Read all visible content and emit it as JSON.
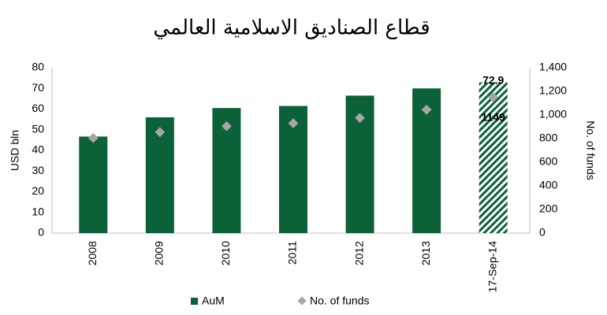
{
  "chart_data": {
    "type": "bar_scatter",
    "title": "قطاع الصناديق الاسلامية العالمي",
    "y_label": "USD bln",
    "y2_label": "No. of funds",
    "categories": [
      "2008",
      "2009",
      "2010",
      "2011",
      "2012",
      "2013",
      "17-Sep-14"
    ],
    "series": [
      {
        "name": "AuM",
        "color": "#0b6138",
        "values": [
          46.7,
          56,
          60.5,
          61.5,
          66.5,
          70,
          72.9
        ],
        "value_labels": [
          null,
          null,
          null,
          null,
          null,
          null,
          "72.9"
        ],
        "hatch_last": true
      },
      {
        "name": "No. of funds",
        "color": "#a6a6a6",
        "axis": "y2",
        "values": [
          805,
          855,
          905,
          930,
          975,
          1045,
          1149
        ],
        "value_labels": [
          null,
          null,
          null,
          null,
          null,
          null,
          "1149"
        ]
      }
    ],
    "ylim": [
      0,
      80
    ],
    "yticks": [
      0,
      10,
      20,
      30,
      40,
      50,
      60,
      70,
      80
    ],
    "y2lim": [
      0,
      1400
    ],
    "y2ticks": [
      0,
      200,
      400,
      600,
      800,
      {
        "value": 1000,
        "label": "1,000"
      },
      {
        "value": 1200,
        "label": "1,200"
      },
      {
        "value": 1400,
        "label": "1,400"
      }
    ],
    "legend": "bottom"
  }
}
